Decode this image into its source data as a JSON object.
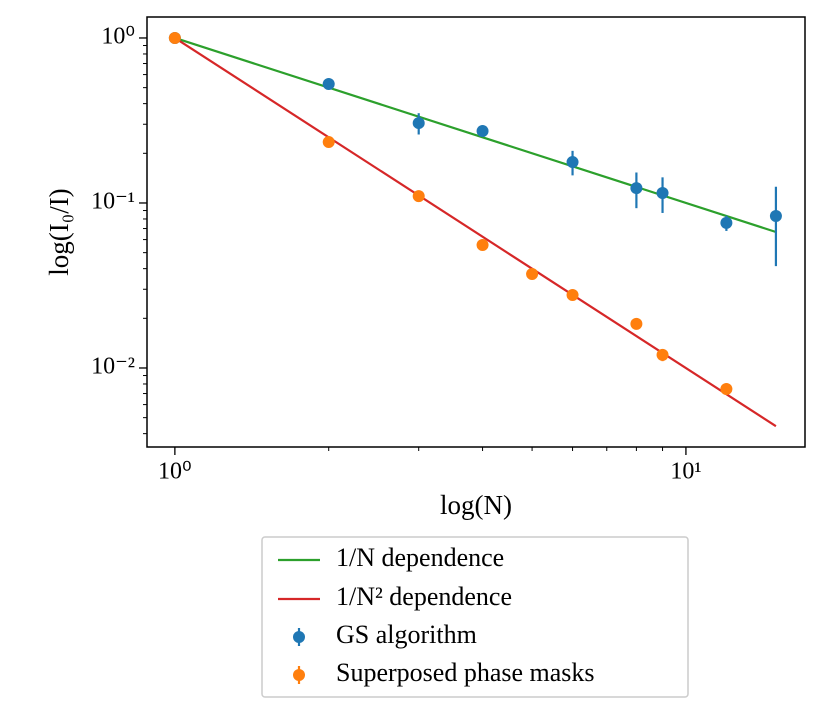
{
  "chart_data": {
    "type": "scatter",
    "xlabel": "log(N)",
    "ylabel": "log(I₀/I)",
    "xscale": "log",
    "yscale": "log",
    "xlim": [
      0.882,
      17.1
    ],
    "ylim": [
      0.00332,
      1.34
    ],
    "xticks": [
      {
        "value": 1,
        "label": "10⁰"
      },
      {
        "value": 10,
        "label": "10¹"
      }
    ],
    "yticks": [
      {
        "value": 0.01,
        "label": "10⁻²"
      },
      {
        "value": 0.1,
        "label": "10⁻¹"
      },
      {
        "value": 1,
        "label": "10⁰"
      }
    ],
    "xminorticks": [
      2,
      3,
      4,
      5,
      6,
      7,
      8,
      9
    ],
    "yminorticks": [
      0.004,
      0.005,
      0.006,
      0.007,
      0.008,
      0.009,
      0.02,
      0.03,
      0.04,
      0.05,
      0.06,
      0.07,
      0.08,
      0.09,
      0.2,
      0.3,
      0.4,
      0.5,
      0.6,
      0.7,
      0.8,
      0.9
    ],
    "legend": "below",
    "series": [
      {
        "name": "1/N dependence",
        "type": "line",
        "color": "#2ca02c",
        "x": [
          1,
          15
        ],
        "values": [
          1,
          0.0667
        ]
      },
      {
        "name": "1/N² dependence",
        "type": "line",
        "color": "#d62728",
        "x": [
          1,
          15
        ],
        "values": [
          1,
          0.00444
        ]
      },
      {
        "name": "GS algorithm",
        "type": "errorbar",
        "color": "#1f77b4",
        "x": [
          1,
          2,
          3,
          4,
          6,
          8,
          9,
          12,
          15
        ],
        "values": [
          1,
          0.526,
          0.305,
          0.273,
          0.177,
          0.123,
          0.115,
          0.0757,
          0.0834
        ],
        "errors": [
          0,
          0,
          0.045,
          0.01,
          0.03,
          0.03,
          0.028,
          0.008,
          0.042
        ]
      },
      {
        "name": "Superposed phase masks",
        "type": "errorbar",
        "color": "#ff7f0e",
        "x": [
          1,
          2,
          3,
          4,
          5,
          6,
          8,
          9,
          12
        ],
        "values": [
          1,
          0.234,
          0.11,
          0.0556,
          0.0371,
          0.0277,
          0.0185,
          0.012,
          0.00746
        ],
        "errors": [
          0,
          0,
          0,
          0,
          0,
          0,
          0,
          0.001,
          0.0005
        ]
      }
    ]
  }
}
